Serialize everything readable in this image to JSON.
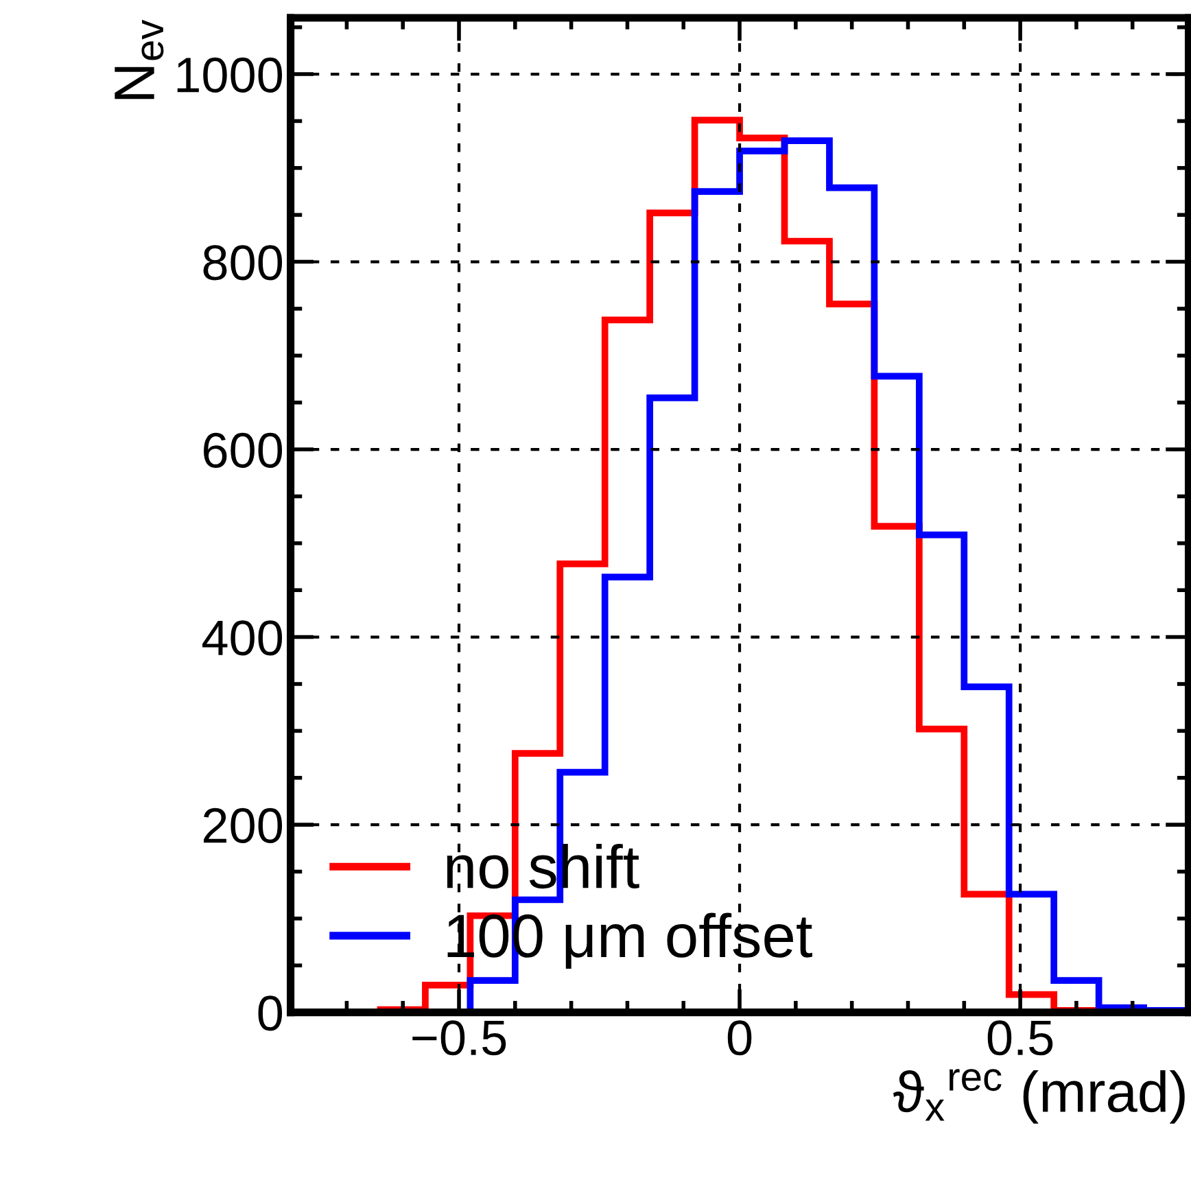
{
  "chart_data": {
    "type": "histogram",
    "xlabel": "ϑ$_{x}$$^{rec}$ (mrad)",
    "ylabel": "N$_{ev}$",
    "bins": [
      -0.8,
      -0.72,
      -0.64,
      -0.56,
      -0.48,
      -0.4,
      -0.32,
      -0.24,
      -0.16,
      -0.08,
      0,
      0.08,
      0.16,
      0.24,
      0.32,
      0.4,
      0.48,
      0.56,
      0.64,
      0.72,
      0.8
    ],
    "series": [
      {
        "name": "no shift",
        "color": "#ff0000",
        "values": [
          0,
          0,
          3,
          29,
          103,
          276,
          478,
          738,
          852,
          951,
          932,
          822,
          755,
          518,
          302,
          126,
          19,
          2,
          0,
          0
        ]
      },
      {
        "name": "100 μm offset",
        "color": "#0000ff",
        "values": [
          0,
          0,
          0,
          0,
          34,
          120,
          256,
          464,
          655,
          875,
          918,
          929,
          879,
          678,
          509,
          347,
          126,
          34,
          5,
          2
        ]
      }
    ],
    "xlim": [
      -0.8,
      0.8
    ],
    "xticks": [
      {
        "value": -0.5,
        "label": "−0.5"
      },
      0,
      0.5
    ],
    "ylim": [
      0,
      1060
    ],
    "yticks": [
      0,
      200,
      400,
      600,
      800,
      1000
    ],
    "grid": true,
    "legend": "bottom left"
  }
}
